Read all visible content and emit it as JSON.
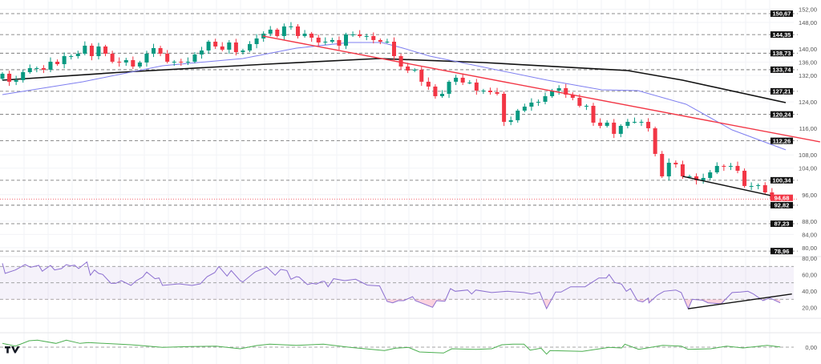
{
  "colors": {
    "up": "#089981",
    "down": "#f23645",
    "ma_fast": "#7f7ff0",
    "ma_slow": "#111111",
    "resistance": "#f23645",
    "support": "#111111",
    "rsi": "#8c6fd0",
    "rsi_band": "#7e57c2",
    "osc": "#4caf50",
    "label_bg": "#111111",
    "last_bg": "#f23645"
  },
  "logo": {
    "text": "TV"
  },
  "chart_data": {
    "type": "candlestick",
    "title": "",
    "price_axis": {
      "ylim": [
        77,
        153
      ],
      "ticks": [
        "152,00",
        "148,00",
        "140,00",
        "136,00",
        "132,00",
        "124,00",
        "116,00",
        "108,00",
        "104,00",
        "96,00",
        "88,00",
        "84,00",
        "80,00"
      ],
      "tick_values": [
        152,
        148,
        140,
        136,
        132,
        124,
        116,
        108,
        104,
        96,
        88,
        84,
        80
      ]
    },
    "levels": [
      {
        "value": 150.67,
        "label": "150,67"
      },
      {
        "value": 144.35,
        "label": "144,35"
      },
      {
        "value": 138.73,
        "label": "138,73"
      },
      {
        "value": 133.74,
        "label": "133,74"
      },
      {
        "value": 127.21,
        "label": "127,21"
      },
      {
        "value": 120.24,
        "label": "120,24"
      },
      {
        "value": 112.26,
        "label": "112,26"
      },
      {
        "value": 100.34,
        "label": "100,34"
      },
      {
        "value": 92.82,
        "label": "92,82"
      },
      {
        "value": 87.23,
        "label": "87,23"
      },
      {
        "value": 78.96,
        "label": "78,96"
      }
    ],
    "last_price": {
      "value": 94.68,
      "label": "94,68"
    },
    "first_open": 131.0,
    "close": [
      132.52,
      130.1,
      130.58,
      133.0,
      134.21,
      134.21,
      133.73,
      136.15,
      135.42,
      137.84,
      137.84,
      138.57,
      140.99,
      137.84,
      140.75,
      138.57,
      136.15,
      135.91,
      136.63,
      134.7,
      135.91,
      138.57,
      140.26,
      138.57,
      136.15,
      136.15,
      135.91,
      136.15,
      138.33,
      139.54,
      142.2,
      140.75,
      139.78,
      141.96,
      139.05,
      139.54,
      141.47,
      143.17,
      144.62,
      145.83,
      143.9,
      146.8,
      146.8,
      143.9,
      144.62,
      143.41,
      141.96,
      142.2,
      142.69,
      140.99,
      144.38,
      144.38,
      143.9,
      143.9,
      142.69,
      142.2,
      142.2,
      137.84,
      134.7,
      133.48,
      133.73,
      130.1,
      128.64,
      125.74,
      126.46,
      130.1,
      131.31,
      129.86,
      129.86,
      127.43,
      127.43,
      126.95,
      126.46,
      117.99,
      118.48,
      121.38,
      122.59,
      123.8,
      124.04,
      125.74,
      127.43,
      128.16,
      126.22,
      125.25,
      122.83,
      122.83,
      117.75,
      116.78,
      117.75,
      114.36,
      116.78,
      117.99,
      117.99,
      117.99,
      116.05,
      108.31,
      101.53,
      105.64,
      105.16,
      101.53,
      101.53,
      100.32,
      101.04,
      102.74,
      104.68,
      104.43,
      104.68,
      103.22,
      98.62,
      98.62,
      98.86,
      96.68,
      94.68
    ],
    "ma_fast": [
      [
        0,
        126.22
      ],
      [
        11.7,
        130.1
      ],
      [
        23.3,
        134.94
      ],
      [
        35,
        137.12
      ],
      [
        42.8,
        140.26
      ],
      [
        50.5,
        141.96
      ],
      [
        55.2,
        141.96
      ],
      [
        58.3,
        140.26
      ],
      [
        62.2,
        137.84
      ],
      [
        79.3,
        130.58
      ],
      [
        87.2,
        127.67
      ],
      [
        92.5,
        127.43
      ],
      [
        99.5,
        123.31
      ],
      [
        106.2,
        115.56
      ],
      [
        114,
        109.52
      ]
    ],
    "ma_slow": [
      [
        0,
        130.58
      ],
      [
        17.5,
        133.0
      ],
      [
        38.5,
        135.42
      ],
      [
        54.8,
        137.12
      ],
      [
        70,
        135.91
      ],
      [
        91,
        133.48
      ],
      [
        99,
        130.58
      ],
      [
        114,
        123.8
      ]
    ],
    "resistance_line": [
      [
        37.9,
        143.9
      ],
      [
        119,
        111.94
      ]
    ],
    "support_line": [
      [
        99,
        101.53
      ],
      [
        114,
        94.74
      ]
    ],
    "rsi": {
      "ticks": [
        "80,00",
        "60,00",
        "40,00",
        "20,00"
      ],
      "tick_values": [
        80,
        60,
        40,
        20
      ],
      "band": [
        30,
        70
      ],
      "mid": 50,
      "values": [
        [
          0,
          73.8
        ],
        [
          0.4,
          61.5
        ],
        [
          1.9,
          65.7
        ],
        [
          3.3,
          72.2
        ],
        [
          4.1,
          68.9
        ],
        [
          5.3,
          71.2
        ],
        [
          5.8,
          64.1
        ],
        [
          7.0,
          71.2
        ],
        [
          7.6,
          65.7
        ],
        [
          8.6,
          67.3
        ],
        [
          9.3,
          72.2
        ],
        [
          9.9,
          70.6
        ],
        [
          10.5,
          71.5
        ],
        [
          11.1,
          67.3
        ],
        [
          12.3,
          75.4
        ],
        [
          12.8,
          59.2
        ],
        [
          13.4,
          65.7
        ],
        [
          14.0,
          61.5
        ],
        [
          14.6,
          60.2
        ],
        [
          15.8,
          49.4
        ],
        [
          16.5,
          49.4
        ],
        [
          17.3,
          52.7
        ],
        [
          18.7,
          46.8
        ],
        [
          19.5,
          52.7
        ],
        [
          20.4,
          56.9
        ],
        [
          21.0,
          63.1
        ],
        [
          22.2,
          55.0
        ],
        [
          22.8,
          55.9
        ],
        [
          23.3,
          46.8
        ],
        [
          25.7,
          48.8
        ],
        [
          27.6,
          46.8
        ],
        [
          28.8,
          48.8
        ],
        [
          29.8,
          57.6
        ],
        [
          30.9,
          62.4
        ],
        [
          31.5,
          69.9
        ],
        [
          32.7,
          58.2
        ],
        [
          33.3,
          65.0
        ],
        [
          34.6,
          52.7
        ],
        [
          35.0,
          51.1
        ],
        [
          36.8,
          63.4
        ],
        [
          38.5,
          69.0
        ],
        [
          39.7,
          59.2
        ],
        [
          40.5,
          66.3
        ],
        [
          41.4,
          65.0
        ],
        [
          42.0,
          54.3
        ],
        [
          42.8,
          57.6
        ],
        [
          43.2,
          56.9
        ],
        [
          44.4,
          47.8
        ],
        [
          45.1,
          49.4
        ],
        [
          45.7,
          48.5
        ],
        [
          46.5,
          51.7
        ],
        [
          46.9,
          51.7
        ],
        [
          47.4,
          45.2
        ],
        [
          48.2,
          55.0
        ],
        [
          49.8,
          52.7
        ],
        [
          51.4,
          54.3
        ],
        [
          53.1,
          47.2
        ],
        [
          54.9,
          46.2
        ],
        [
          56.0,
          27.3
        ],
        [
          56.8,
          25.7
        ],
        [
          57.6,
          28.3
        ],
        [
          58.4,
          28.3
        ],
        [
          59.7,
          33.2
        ],
        [
          60.1,
          28.3
        ],
        [
          62.6,
          20.2
        ],
        [
          63.2,
          28.3
        ],
        [
          64.4,
          27.6
        ],
        [
          65.2,
          42.9
        ],
        [
          65.9,
          39.7
        ],
        [
          67.7,
          41.3
        ],
        [
          68.3,
          36.4
        ],
        [
          68.9,
          41.3
        ],
        [
          71.2,
          38.1
        ],
        [
          73.5,
          39.7
        ],
        [
          75.9,
          38.1
        ],
        [
          77.0,
          36.4
        ],
        [
          78.2,
          38.7
        ],
        [
          79.2,
          18.5
        ],
        [
          80.5,
          38.7
        ],
        [
          81.3,
          38.7
        ],
        [
          82.7,
          45.2
        ],
        [
          84.8,
          45.2
        ],
        [
          86.8,
          55.9
        ],
        [
          87.9,
          55.9
        ],
        [
          88.3,
          60.2
        ],
        [
          89.1,
          50.4
        ],
        [
          90.1,
          48.5
        ],
        [
          90.8,
          39.7
        ],
        [
          91.4,
          42.9
        ],
        [
          92.4,
          28.3
        ],
        [
          93.2,
          26.7
        ],
        [
          94.0,
          31.5
        ],
        [
          94.1,
          25.7
        ],
        [
          95.3,
          34.8
        ],
        [
          96.3,
          39.7
        ],
        [
          98.0,
          41.3
        ],
        [
          98.8,
          38.1
        ],
        [
          99.8,
          18.5
        ],
        [
          100.4,
          29.9
        ],
        [
          101.9,
          28.9
        ],
        [
          102.7,
          25.7
        ],
        [
          104.6,
          24.4
        ],
        [
          106.2,
          38.1
        ],
        [
          107.4,
          38.7
        ],
        [
          108.5,
          39.7
        ],
        [
          109.3,
          36.4
        ],
        [
          110.7,
          28.3
        ],
        [
          111.7,
          31.5
        ],
        [
          113.2,
          25.7
        ]
      ],
      "trendline": [
        [
          99.8,
          18.5
        ],
        [
          114.9,
          36.4
        ]
      ]
    },
    "oscillator": {
      "ticks": [
        "0,00"
      ],
      "zero": 0,
      "values": [
        [
          0,
          4.7
        ],
        [
          1.9,
          1.3
        ],
        [
          3.9,
          8
        ],
        [
          5.1,
          8.7
        ],
        [
          7.8,
          4.7
        ],
        [
          9.3,
          8.7
        ],
        [
          11.3,
          4.7
        ],
        [
          12.5,
          5.7
        ],
        [
          18.7,
          3
        ],
        [
          20.2,
          2
        ],
        [
          23.3,
          -0.3
        ],
        [
          27.2,
          0.7
        ],
        [
          31.1,
          1.3
        ],
        [
          34.6,
          -2
        ],
        [
          37,
          2
        ],
        [
          38.9,
          3.7
        ],
        [
          42.8,
          2.3
        ],
        [
          46.7,
          3.7
        ],
        [
          50.6,
          -0.3
        ],
        [
          55.6,
          -4.3
        ],
        [
          57.2,
          -1.3
        ],
        [
          59.1,
          -0.3
        ],
        [
          60.7,
          -6
        ],
        [
          64.2,
          -7.3
        ],
        [
          65.4,
          -2
        ],
        [
          68.9,
          -2.7
        ],
        [
          71.2,
          -2
        ],
        [
          72.7,
          3
        ],
        [
          74.3,
          3.7
        ],
        [
          75.9,
          3.7
        ],
        [
          76.8,
          -3.7
        ],
        [
          78.4,
          -1.3
        ],
        [
          79.2,
          -8.7
        ],
        [
          79.7,
          -4.3
        ],
        [
          84.4,
          -5.3
        ],
        [
          88.3,
          -0.3
        ],
        [
          90.1,
          -1
        ],
        [
          90.6,
          3.7
        ],
        [
          92.6,
          -2.7
        ],
        [
          96.1,
          2.3
        ],
        [
          98.8,
          1.3
        ],
        [
          99.8,
          -2.7
        ],
        [
          103.1,
          -2
        ],
        [
          105.4,
          1.3
        ],
        [
          107.8,
          -1
        ],
        [
          111.3,
          2.3
        ],
        [
          113.2,
          0.3
        ]
      ]
    }
  }
}
